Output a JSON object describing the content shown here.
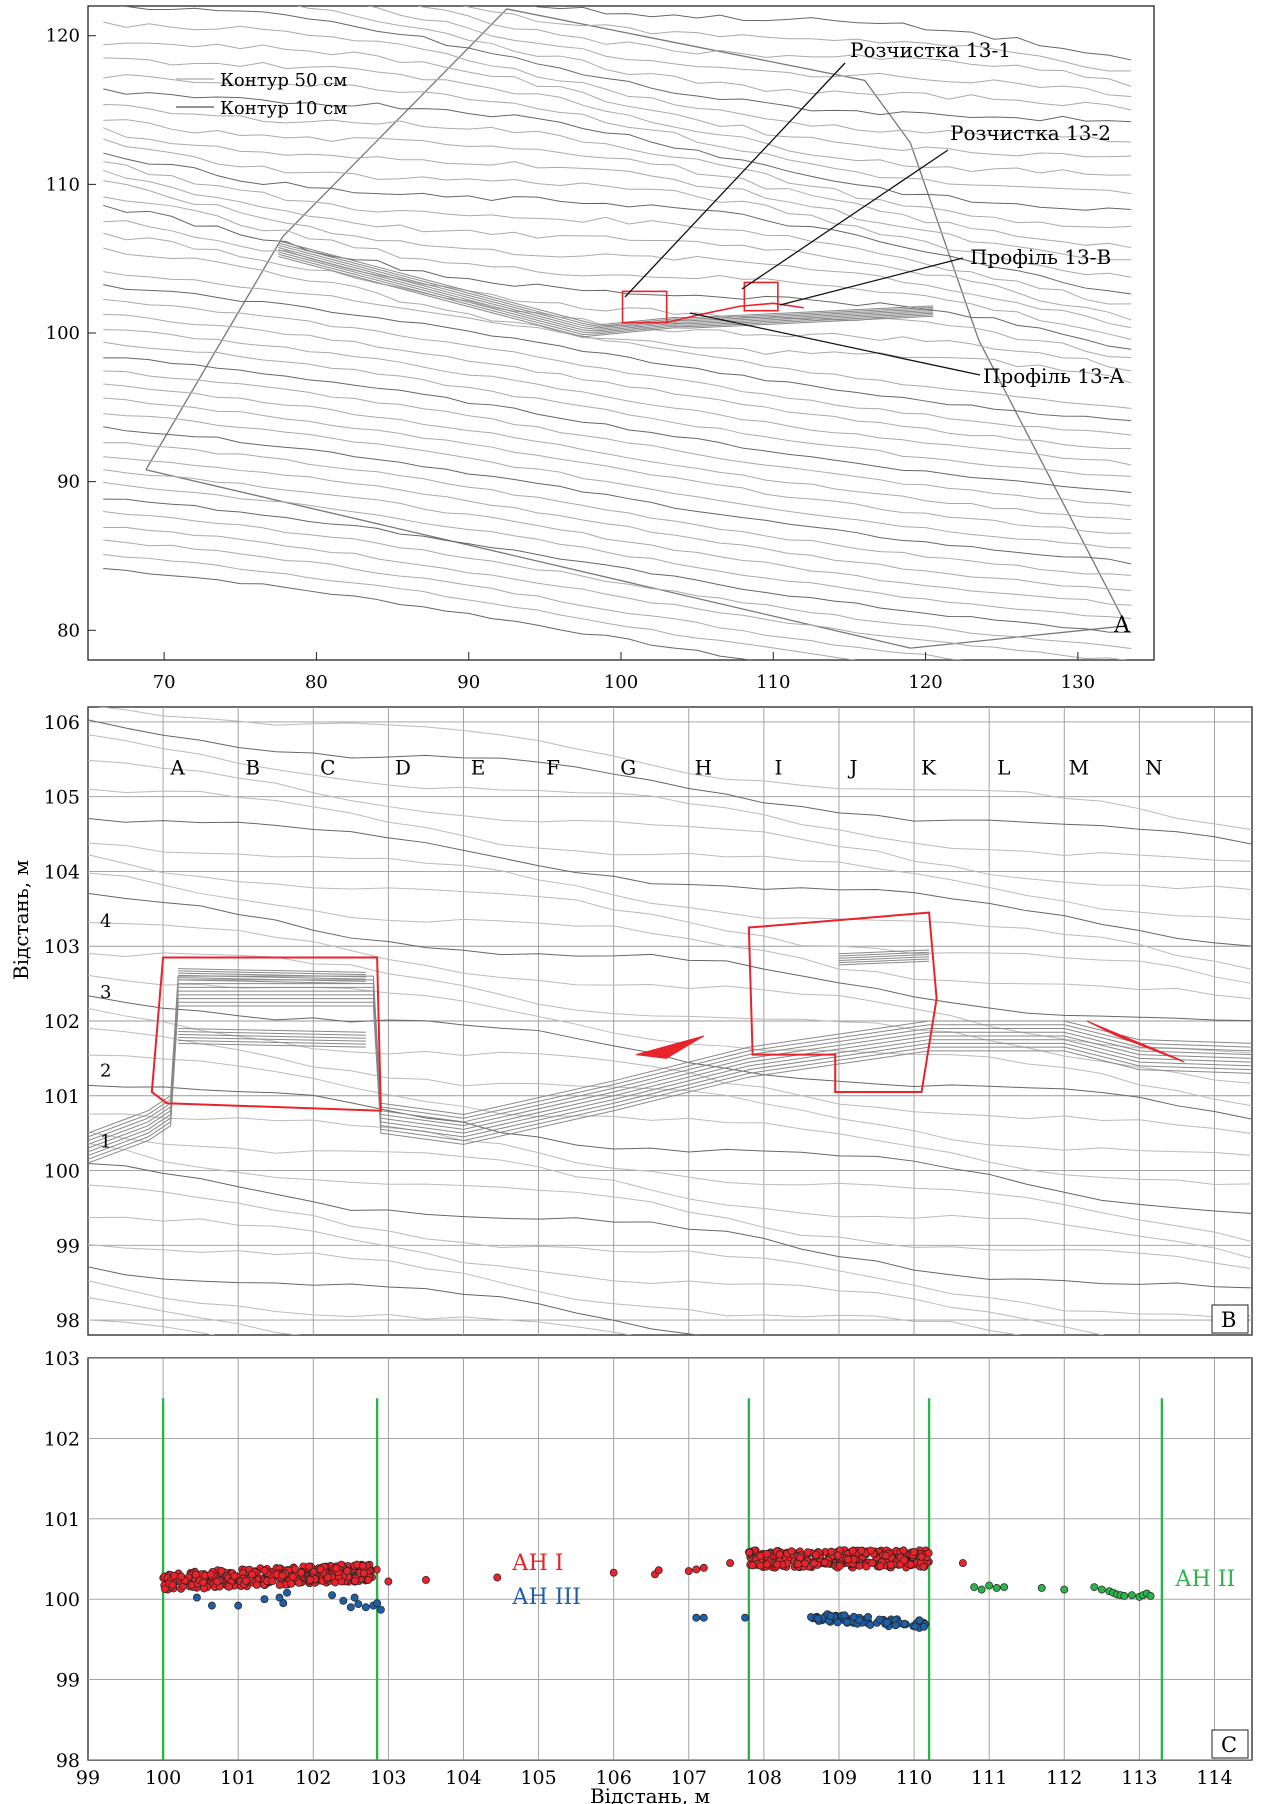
{
  "panelA": {
    "tag": "A",
    "legend": [
      "Контур 50 см",
      "Контур 10 см"
    ],
    "xticks": [
      70,
      80,
      90,
      100,
      110,
      120,
      130
    ],
    "yticks": [
      80,
      90,
      100,
      110,
      120
    ],
    "xlim": [
      65,
      135
    ],
    "ylim": [
      78,
      122
    ],
    "annotations": [
      "Розчистка 13-1",
      "Розчистка 13-2",
      "Профіль 13-B",
      "Профіль 13-A"
    ]
  },
  "panelB": {
    "tag": "B",
    "ylabel": "Відстань, м",
    "xlim": [
      99,
      114.5
    ],
    "ylim": [
      97.8,
      106.2
    ],
    "yticks": [
      98,
      99,
      100,
      101,
      102,
      103,
      104,
      105,
      106
    ],
    "columns": [
      "A",
      "B",
      "C",
      "D",
      "E",
      "F",
      "G",
      "H",
      "I",
      "J",
      "K",
      "L",
      "M",
      "N"
    ],
    "layers": [
      "1",
      "2",
      "3",
      "4"
    ]
  },
  "panelC": {
    "tag": "C",
    "xlabel": "Відстань, м",
    "xticks": [
      99,
      100,
      101,
      102,
      103,
      104,
      105,
      106,
      107,
      108,
      109,
      110,
      111,
      112,
      113,
      114
    ],
    "yticks": [
      98,
      99,
      100,
      101,
      102,
      103
    ],
    "xlim": [
      99,
      114.5
    ],
    "ylim": [
      98,
      103
    ],
    "boundaries": [
      100.0,
      102.85,
      107.8,
      110.2,
      113.3
    ],
    "labels": [
      "АН I",
      "АН III",
      "АН II"
    ],
    "colors": {
      "ah1": "#e8232a",
      "ah3": "#1f5fa8",
      "ah2": "#2db34a",
      "boundary": "#2db34a"
    }
  },
  "chart_data": {
    "type": "scatter",
    "series": [
      {
        "name": "АН I",
        "clusters": [
          {
            "x": [
              100.0,
              102.85
            ],
            "y": [
              100.15,
              100.42
            ]
          },
          {
            "x": [
              107.8,
              110.2
            ],
            "y": [
              100.35,
              100.65
            ]
          }
        ],
        "points": [
          [
            103.0,
            100.22
          ],
          [
            103.5,
            100.24
          ],
          [
            104.45,
            100.27
          ],
          [
            106.0,
            100.33
          ],
          [
            106.55,
            100.31
          ],
          [
            106.6,
            100.36
          ],
          [
            107.0,
            100.35
          ],
          [
            107.1,
            100.37
          ],
          [
            107.2,
            100.39
          ],
          [
            107.55,
            100.45
          ],
          [
            110.65,
            100.45
          ]
        ]
      },
      {
        "name": "АН III",
        "points": [
          [
            100.45,
            100.02
          ],
          [
            100.65,
            99.92
          ],
          [
            101.0,
            99.92
          ],
          [
            101.35,
            100.0
          ],
          [
            101.55,
            100.02
          ],
          [
            101.6,
            99.95
          ],
          [
            101.65,
            100.08
          ],
          [
            102.25,
            100.05
          ],
          [
            102.4,
            99.98
          ],
          [
            102.5,
            99.9
          ],
          [
            102.55,
            100.02
          ],
          [
            102.6,
            99.94
          ],
          [
            102.7,
            99.9
          ],
          [
            102.8,
            99.92
          ],
          [
            102.85,
            99.95
          ],
          [
            102.9,
            99.87
          ],
          [
            107.1,
            99.77
          ],
          [
            107.2,
            99.77
          ],
          [
            107.75,
            99.77
          ]
        ]
      },
      {
        "name": "АН II",
        "points": [
          [
            110.8,
            100.15
          ],
          [
            110.9,
            100.12
          ],
          [
            111.0,
            100.17
          ],
          [
            111.1,
            100.14
          ],
          [
            111.2,
            100.15
          ],
          [
            111.7,
            100.14
          ],
          [
            112.0,
            100.12
          ],
          [
            112.4,
            100.15
          ],
          [
            112.5,
            100.12
          ],
          [
            112.6,
            100.1
          ],
          [
            112.65,
            100.08
          ],
          [
            112.7,
            100.06
          ],
          [
            112.75,
            100.05
          ],
          [
            112.8,
            100.04
          ],
          [
            112.9,
            100.05
          ],
          [
            113.0,
            100.03
          ],
          [
            113.05,
            100.05
          ],
          [
            113.1,
            100.07
          ],
          [
            113.15,
            100.04
          ]
        ]
      }
    ],
    "ah3_cluster": {
      "x": [
        108.6,
        110.2
      ],
      "y": [
        99.6,
        99.82
      ]
    }
  }
}
